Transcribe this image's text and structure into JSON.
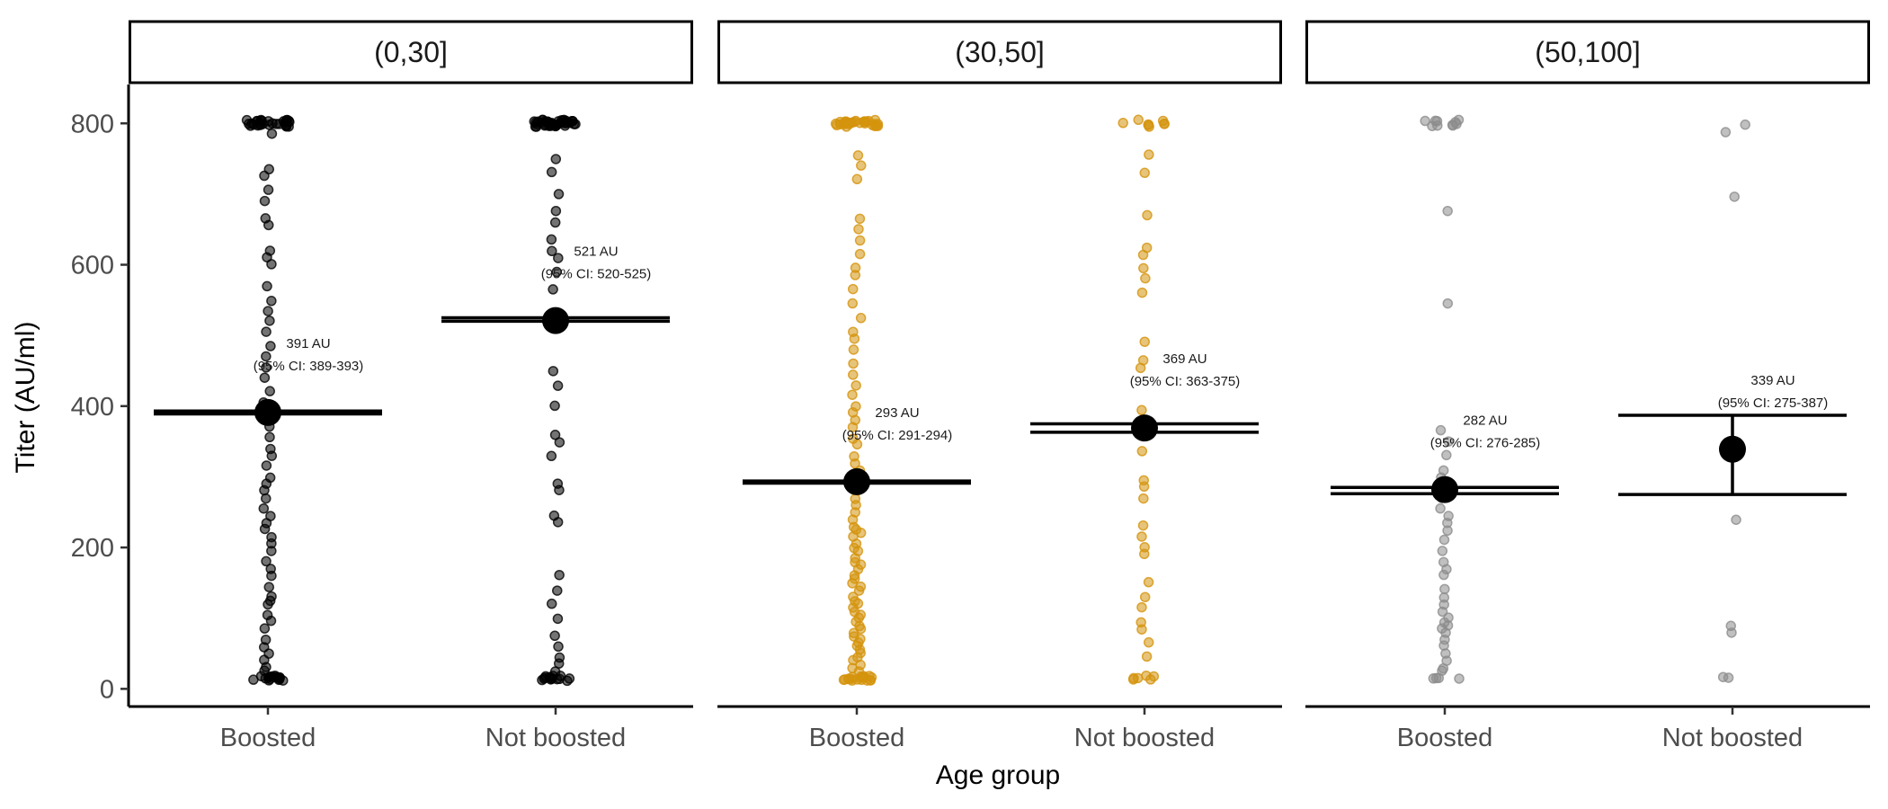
{
  "chart_data": {
    "type": "scatter",
    "xlabel": "Age group",
    "ylabel": "Titer (AU/ml)",
    "ylim": [
      -25,
      855
    ],
    "yticks": [
      0,
      200,
      400,
      600,
      800
    ],
    "categories": [
      "Boosted",
      "Not boosted"
    ],
    "grid": false,
    "legend": "none",
    "panels": [
      {
        "label": "(0,30]",
        "color": "#000000",
        "groups": [
          {
            "category": "Boosted",
            "estimate": 391,
            "ci_low": 389,
            "ci_high": 393,
            "annotation_line1": "391 AU",
            "annotation_line2": "(95% CI: 389-393)",
            "values": [
              800,
              800,
              800,
              800,
              800,
              800,
              800,
              800,
              800,
              800,
              800,
              800,
              800,
              800,
              800,
              800,
              800,
              800,
              800,
              800,
              800,
              800,
              800,
              800,
              800,
              800,
              800,
              800,
              800,
              800,
              785,
              735,
              725,
              705,
              690,
              665,
              655,
              620,
              610,
              600,
              570,
              550,
              535,
              520,
              505,
              485,
              470,
              455,
              440,
              420,
              405,
              385,
              370,
              355,
              340,
              330,
              315,
              300,
              290,
              280,
              270,
              255,
              245,
              235,
              225,
              215,
              205,
              195,
              180,
              170,
              160,
              145,
              130,
              125,
              120,
              105,
              95,
              85,
              70,
              60,
              50,
              40,
              30,
              25,
              15,
              15,
              15,
              15,
              15,
              15,
              15,
              15,
              15,
              15,
              15,
              15,
              15,
              15,
              15,
              15
            ]
          },
          {
            "category": "Not boosted",
            "estimate": 521,
            "ci_low": 520,
            "ci_high": 525,
            "annotation_line1": "521 AU",
            "annotation_line2": "(95% CI: 520-525)",
            "values": [
              800,
              800,
              800,
              800,
              800,
              800,
              800,
              800,
              800,
              800,
              800,
              800,
              800,
              800,
              800,
              800,
              800,
              800,
              800,
              800,
              800,
              800,
              800,
              800,
              800,
              800,
              800,
              800,
              800,
              800,
              800,
              800,
              800,
              800,
              800,
              800,
              800,
              800,
              800,
              800,
              750,
              730,
              700,
              675,
              660,
              635,
              620,
              610,
              590,
              565,
              530,
              450,
              430,
              400,
              360,
              350,
              330,
              290,
              280,
              245,
              235,
              160,
              140,
              120,
              100,
              75,
              60,
              45,
              35,
              25,
              15,
              15,
              15,
              15,
              15,
              15,
              15,
              15,
              15,
              15,
              15,
              15,
              15,
              15
            ]
          }
        ]
      },
      {
        "label": "(30,50]",
        "color": "#d4930c",
        "groups": [
          {
            "category": "Boosted",
            "estimate": 293,
            "ci_low": 291,
            "ci_high": 294,
            "annotation_line1": "293 AU",
            "annotation_line2": "(95% CI: 291-294)",
            "values": [
              800,
              800,
              800,
              800,
              800,
              800,
              800,
              800,
              800,
              800,
              800,
              800,
              800,
              800,
              800,
              800,
              800,
              800,
              800,
              800,
              800,
              800,
              800,
              800,
              800,
              800,
              800,
              800,
              800,
              800,
              755,
              740,
              720,
              665,
              650,
              635,
              615,
              595,
              585,
              565,
              545,
              525,
              505,
              495,
              480,
              460,
              445,
              430,
              415,
              400,
              390,
              380,
              370,
              355,
              345,
              330,
              320,
              310,
              300,
              295,
              290,
              285,
              280,
              270,
              260,
              250,
              240,
              230,
              225,
              220,
              215,
              205,
              200,
              195,
              185,
              180,
              175,
              170,
              160,
              155,
              150,
              145,
              140,
              130,
              125,
              120,
              115,
              110,
              105,
              100,
              95,
              90,
              85,
              80,
              75,
              70,
              65,
              60,
              55,
              50,
              45,
              40,
              35,
              30,
              25,
              20,
              15,
              15,
              15,
              15,
              15,
              15,
              15,
              15,
              15,
              15,
              15,
              15,
              15,
              15,
              15,
              15,
              15,
              15
            ]
          },
          {
            "category": "Not boosted",
            "estimate": 369,
            "ci_low": 363,
            "ci_high": 375,
            "annotation_line1": "369 AU",
            "annotation_line2": "(95% CI: 363-375)",
            "values": [
              800,
              800,
              800,
              800,
              800,
              800,
              800,
              800,
              755,
              730,
              670,
              625,
              615,
              595,
              580,
              560,
              490,
              465,
              455,
              395,
              370,
              360,
              335,
              295,
              285,
              270,
              230,
              215,
              200,
              190,
              150,
              130,
              115,
              95,
              85,
              65,
              45,
              15,
              15,
              15,
              15,
              15,
              15
            ]
          }
        ]
      },
      {
        "label": "(50,100]",
        "color": "#8c8c8c",
        "groups": [
          {
            "category": "Boosted",
            "estimate": 282,
            "ci_low": 276,
            "ci_high": 285,
            "annotation_line1": "282 AU",
            "annotation_line2": "(95% CI: 276-285)",
            "values": [
              800,
              800,
              800,
              800,
              800,
              800,
              800,
              800,
              800,
              800,
              675,
              545,
              365,
              350,
              330,
              310,
              300,
              290,
              280,
              270,
              255,
              245,
              235,
              225,
              210,
              195,
              180,
              170,
              160,
              140,
              130,
              120,
              110,
              100,
              95,
              90,
              85,
              80,
              70,
              60,
              50,
              40,
              30,
              25,
              15,
              15,
              15,
              15
            ]
          },
          {
            "category": "Not boosted",
            "estimate": 339,
            "ci_low": 275,
            "ci_high": 387,
            "annotation_line1": "339 AU",
            "annotation_line2": "(95% CI: 275-387)",
            "values": [
              800,
              790,
              695,
              240,
              90,
              80,
              15,
              15
            ]
          }
        ]
      }
    ]
  }
}
